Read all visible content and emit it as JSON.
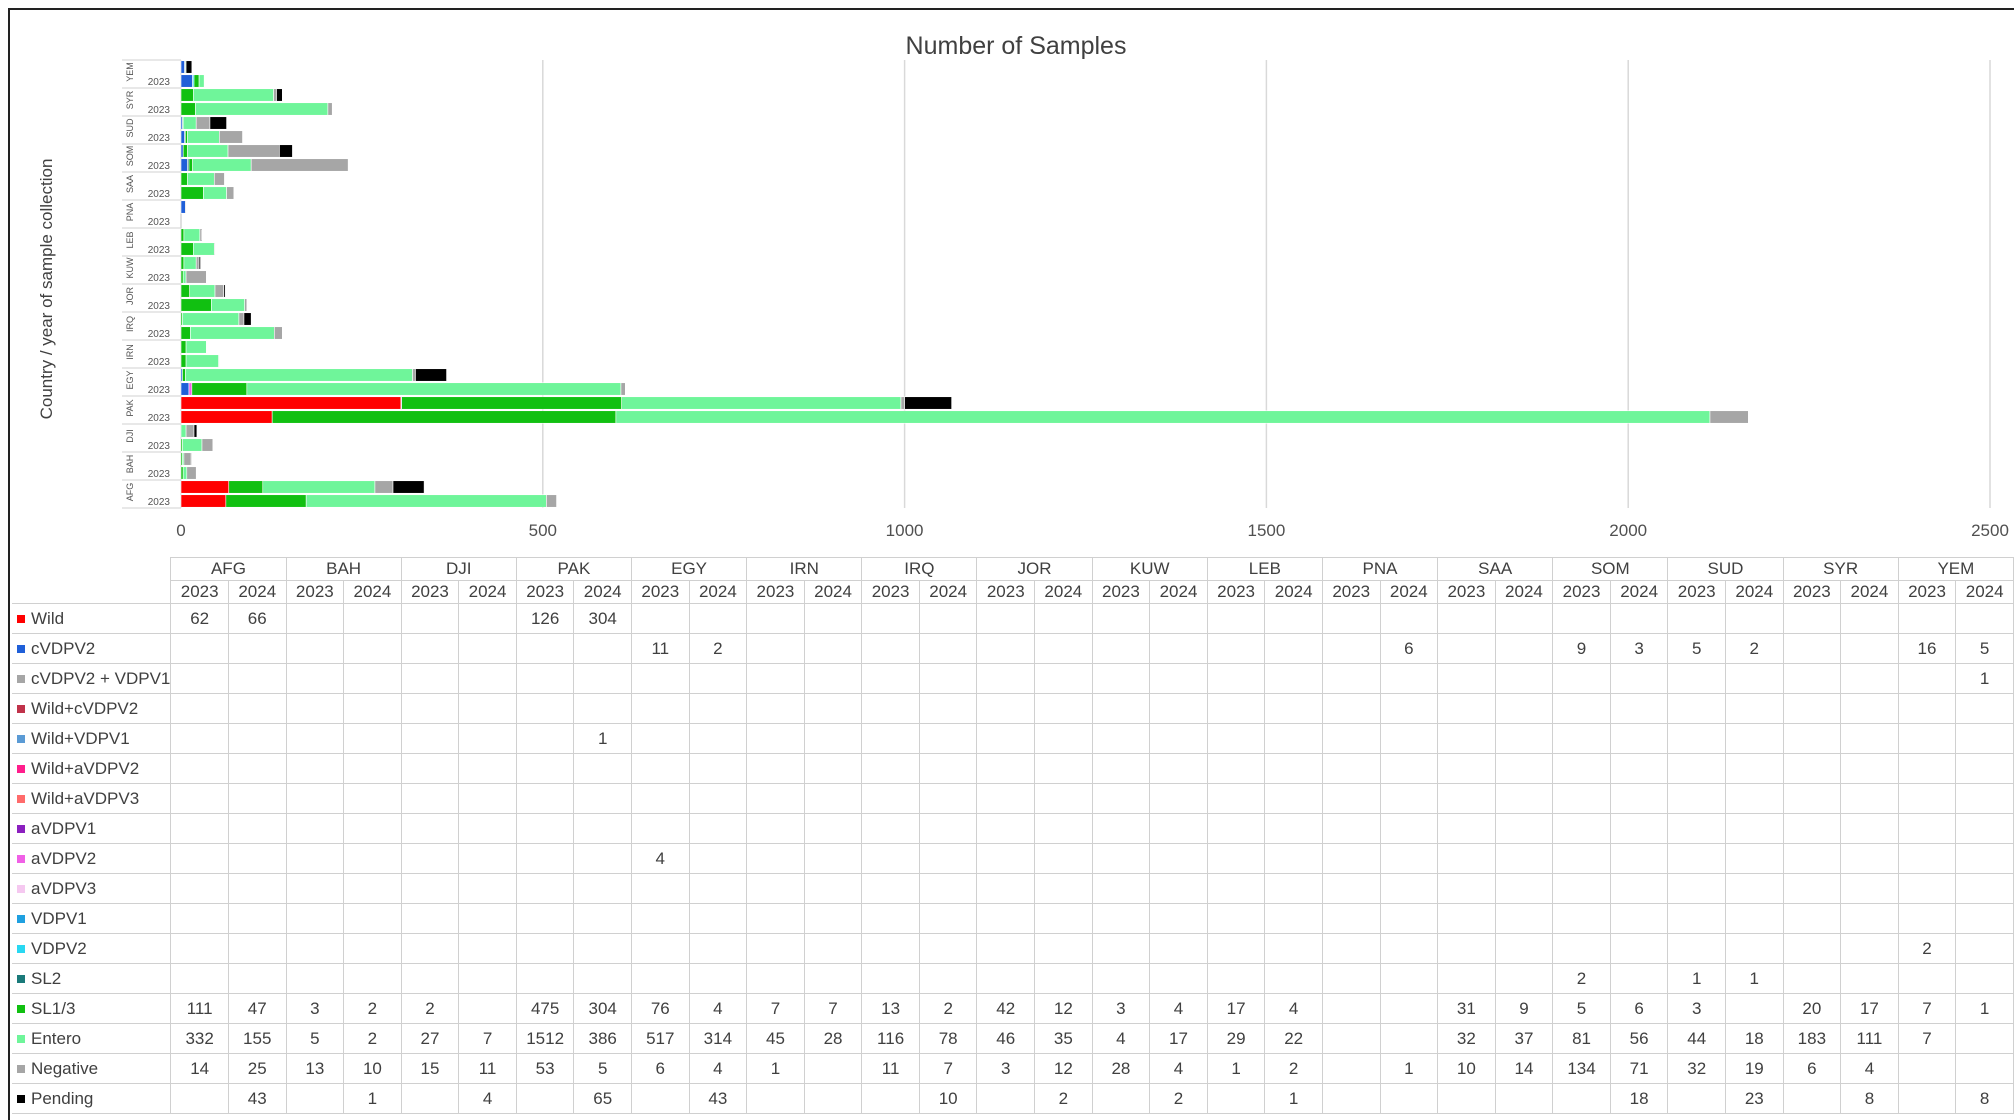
{
  "chart_data": {
    "type": "bar",
    "orientation": "horizontal",
    "stacked": true,
    "title": "Number of Samples",
    "ylabel": "Country / year of sample collection",
    "xlim": [
      0,
      2500
    ],
    "xticks": [
      0,
      500,
      1000,
      1500,
      2000,
      2500
    ],
    "grid": true,
    "countries": [
      "AFG",
      "BAH",
      "DJI",
      "PAK",
      "EGY",
      "IRN",
      "IRQ",
      "JOR",
      "KUW",
      "LEB",
      "PNA",
      "SAA",
      "SOM",
      "SUD",
      "SYR",
      "YEM"
    ],
    "years": [
      "2023",
      "2024"
    ],
    "series": [
      {
        "name": "Wild",
        "color": "#ff0000",
        "values": [
          [
            62,
            66
          ],
          [
            null,
            null
          ],
          [
            null,
            null
          ],
          [
            126,
            304
          ],
          [
            null,
            null
          ],
          [
            null,
            null
          ],
          [
            null,
            null
          ],
          [
            null,
            null
          ],
          [
            null,
            null
          ],
          [
            null,
            null
          ],
          [
            null,
            null
          ],
          [
            null,
            null
          ],
          [
            null,
            null
          ],
          [
            null,
            null
          ],
          [
            null,
            null
          ],
          [
            null,
            null
          ]
        ]
      },
      {
        "name": "cVDPV2",
        "color": "#1f5fd8",
        "values": [
          [
            null,
            null
          ],
          [
            null,
            null
          ],
          [
            null,
            null
          ],
          [
            null,
            null
          ],
          [
            11,
            2
          ],
          [
            null,
            null
          ],
          [
            null,
            null
          ],
          [
            null,
            null
          ],
          [
            null,
            null
          ],
          [
            null,
            null
          ],
          [
            null,
            6
          ],
          [
            null,
            null
          ],
          [
            9,
            3
          ],
          [
            5,
            2
          ],
          [
            null,
            null
          ],
          [
            16,
            5
          ]
        ]
      },
      {
        "name": "cVDPV2 + VDPV1",
        "color": "#a6a6a6",
        "values": [
          [
            null,
            null
          ],
          [
            null,
            null
          ],
          [
            null,
            null
          ],
          [
            null,
            null
          ],
          [
            null,
            null
          ],
          [
            null,
            null
          ],
          [
            null,
            null
          ],
          [
            null,
            null
          ],
          [
            null,
            null
          ],
          [
            null,
            null
          ],
          [
            null,
            null
          ],
          [
            null,
            null
          ],
          [
            null,
            null
          ],
          [
            null,
            null
          ],
          [
            null,
            null
          ],
          [
            null,
            1
          ]
        ]
      },
      {
        "name": "Wild+cVDPV2",
        "color": "#c0324a",
        "values": [
          [
            null,
            null
          ],
          [
            null,
            null
          ],
          [
            null,
            null
          ],
          [
            null,
            null
          ],
          [
            null,
            null
          ],
          [
            null,
            null
          ],
          [
            null,
            null
          ],
          [
            null,
            null
          ],
          [
            null,
            null
          ],
          [
            null,
            null
          ],
          [
            null,
            null
          ],
          [
            null,
            null
          ],
          [
            null,
            null
          ],
          [
            null,
            null
          ],
          [
            null,
            null
          ],
          [
            null,
            null
          ]
        ]
      },
      {
        "name": "Wild+VDPV1",
        "color": "#5b9bd5",
        "values": [
          [
            null,
            null
          ],
          [
            null,
            null
          ],
          [
            null,
            null
          ],
          [
            null,
            1
          ],
          [
            null,
            null
          ],
          [
            null,
            null
          ],
          [
            null,
            null
          ],
          [
            null,
            null
          ],
          [
            null,
            null
          ],
          [
            null,
            null
          ],
          [
            null,
            null
          ],
          [
            null,
            null
          ],
          [
            null,
            null
          ],
          [
            null,
            null
          ],
          [
            null,
            null
          ],
          [
            null,
            null
          ]
        ]
      },
      {
        "name": "Wild+aVDPV2",
        "color": "#ff1e8c",
        "values": [
          [
            null,
            null
          ],
          [
            null,
            null
          ],
          [
            null,
            null
          ],
          [
            null,
            null
          ],
          [
            null,
            null
          ],
          [
            null,
            null
          ],
          [
            null,
            null
          ],
          [
            null,
            null
          ],
          [
            null,
            null
          ],
          [
            null,
            null
          ],
          [
            null,
            null
          ],
          [
            null,
            null
          ],
          [
            null,
            null
          ],
          [
            null,
            null
          ],
          [
            null,
            null
          ],
          [
            null,
            null
          ]
        ]
      },
      {
        "name": "Wild+aVDPV3",
        "color": "#ff6b6b",
        "values": [
          [
            null,
            null
          ],
          [
            null,
            null
          ],
          [
            null,
            null
          ],
          [
            null,
            null
          ],
          [
            null,
            null
          ],
          [
            null,
            null
          ],
          [
            null,
            null
          ],
          [
            null,
            null
          ],
          [
            null,
            null
          ],
          [
            null,
            null
          ],
          [
            null,
            null
          ],
          [
            null,
            null
          ],
          [
            null,
            null
          ],
          [
            null,
            null
          ],
          [
            null,
            null
          ],
          [
            null,
            null
          ]
        ]
      },
      {
        "name": "aVDPV1",
        "color": "#8b1fbf",
        "values": [
          [
            null,
            null
          ],
          [
            null,
            null
          ],
          [
            null,
            null
          ],
          [
            null,
            null
          ],
          [
            null,
            null
          ],
          [
            null,
            null
          ],
          [
            null,
            null
          ],
          [
            null,
            null
          ],
          [
            null,
            null
          ],
          [
            null,
            null
          ],
          [
            null,
            null
          ],
          [
            null,
            null
          ],
          [
            null,
            null
          ],
          [
            null,
            null
          ],
          [
            null,
            null
          ],
          [
            null,
            null
          ]
        ]
      },
      {
        "name": "aVDPV2",
        "color": "#f060e6",
        "values": [
          [
            null,
            null
          ],
          [
            null,
            null
          ],
          [
            null,
            null
          ],
          [
            null,
            null
          ],
          [
            4,
            null
          ],
          [
            null,
            null
          ],
          [
            null,
            null
          ],
          [
            null,
            null
          ],
          [
            null,
            null
          ],
          [
            null,
            null
          ],
          [
            null,
            null
          ],
          [
            null,
            null
          ],
          [
            null,
            null
          ],
          [
            null,
            null
          ],
          [
            null,
            null
          ],
          [
            null,
            null
          ]
        ]
      },
      {
        "name": "aVDPV3",
        "color": "#f5c8f0",
        "values": [
          [
            null,
            null
          ],
          [
            null,
            null
          ],
          [
            null,
            null
          ],
          [
            null,
            null
          ],
          [
            null,
            null
          ],
          [
            null,
            null
          ],
          [
            null,
            null
          ],
          [
            null,
            null
          ],
          [
            null,
            null
          ],
          [
            null,
            null
          ],
          [
            null,
            null
          ],
          [
            null,
            null
          ],
          [
            null,
            null
          ],
          [
            null,
            null
          ],
          [
            null,
            null
          ],
          [
            null,
            null
          ]
        ]
      },
      {
        "name": "VDPV1",
        "color": "#1fa0e0",
        "values": [
          [
            null,
            null
          ],
          [
            null,
            null
          ],
          [
            null,
            null
          ],
          [
            null,
            null
          ],
          [
            null,
            null
          ],
          [
            null,
            null
          ],
          [
            null,
            null
          ],
          [
            null,
            null
          ],
          [
            null,
            null
          ],
          [
            null,
            null
          ],
          [
            null,
            null
          ],
          [
            null,
            null
          ],
          [
            null,
            null
          ],
          [
            null,
            null
          ],
          [
            null,
            null
          ],
          [
            null,
            null
          ]
        ]
      },
      {
        "name": "VDPV2",
        "color": "#29d8f2",
        "values": [
          [
            null,
            null
          ],
          [
            null,
            null
          ],
          [
            null,
            null
          ],
          [
            null,
            null
          ],
          [
            null,
            null
          ],
          [
            null,
            null
          ],
          [
            null,
            null
          ],
          [
            null,
            null
          ],
          [
            null,
            null
          ],
          [
            null,
            null
          ],
          [
            null,
            null
          ],
          [
            null,
            null
          ],
          [
            null,
            null
          ],
          [
            null,
            null
          ],
          [
            null,
            null
          ],
          [
            2,
            null
          ]
        ]
      },
      {
        "name": "SL2",
        "color": "#1a7a7a",
        "values": [
          [
            null,
            null
          ],
          [
            null,
            null
          ],
          [
            null,
            null
          ],
          [
            null,
            null
          ],
          [
            null,
            null
          ],
          [
            null,
            null
          ],
          [
            null,
            null
          ],
          [
            null,
            null
          ],
          [
            null,
            null
          ],
          [
            null,
            null
          ],
          [
            null,
            null
          ],
          [
            null,
            null
          ],
          [
            2,
            null
          ],
          [
            1,
            1
          ],
          [
            null,
            null
          ],
          [
            null,
            null
          ]
        ]
      },
      {
        "name": "SL1/3",
        "color": "#11c011",
        "values": [
          [
            111,
            47
          ],
          [
            3,
            2
          ],
          [
            2,
            null
          ],
          [
            475,
            304
          ],
          [
            76,
            4
          ],
          [
            7,
            7
          ],
          [
            13,
            2
          ],
          [
            42,
            12
          ],
          [
            3,
            4
          ],
          [
            17,
            4
          ],
          [
            null,
            null
          ],
          [
            31,
            9
          ],
          [
            5,
            6
          ],
          [
            3,
            null
          ],
          [
            20,
            17
          ],
          [
            7,
            1
          ]
        ]
      },
      {
        "name": "Entero",
        "color": "#6ff59a",
        "values": [
          [
            332,
            155
          ],
          [
            5,
            2
          ],
          [
            27,
            7
          ],
          [
            1512,
            386
          ],
          [
            517,
            314
          ],
          [
            45,
            28
          ],
          [
            116,
            78
          ],
          [
            46,
            35
          ],
          [
            4,
            17
          ],
          [
            29,
            22
          ],
          [
            null,
            null
          ],
          [
            32,
            37
          ],
          [
            81,
            56
          ],
          [
            44,
            18
          ],
          [
            183,
            111
          ],
          [
            7,
            null
          ]
        ]
      },
      {
        "name": "Negative",
        "color": "#a6a6a6",
        "values": [
          [
            14,
            25
          ],
          [
            13,
            10
          ],
          [
            15,
            11
          ],
          [
            53,
            5
          ],
          [
            6,
            4
          ],
          [
            1,
            null
          ],
          [
            11,
            7
          ],
          [
            3,
            12
          ],
          [
            28,
            4
          ],
          [
            1,
            2
          ],
          [
            null,
            1
          ],
          [
            10,
            14
          ],
          [
            134,
            71
          ],
          [
            32,
            19
          ],
          [
            6,
            4
          ],
          [
            null,
            null
          ]
        ]
      },
      {
        "name": "Pending",
        "color": "#000000",
        "values": [
          [
            null,
            43
          ],
          [
            null,
            1
          ],
          [
            null,
            4
          ],
          [
            null,
            65
          ],
          [
            null,
            43
          ],
          [
            null,
            null
          ],
          [
            null,
            10
          ],
          [
            null,
            2
          ],
          [
            null,
            2
          ],
          [
            null,
            1
          ],
          [
            null,
            null
          ],
          [
            null,
            null
          ],
          [
            null,
            18
          ],
          [
            null,
            23
          ],
          [
            null,
            8
          ],
          [
            null,
            8
          ]
        ]
      }
    ]
  }
}
